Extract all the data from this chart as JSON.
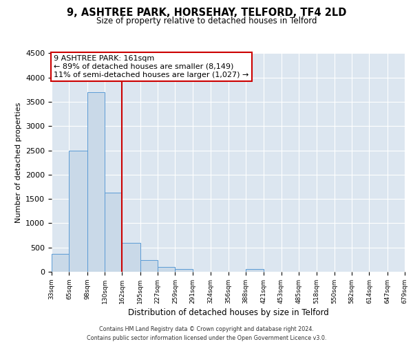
{
  "title": "9, ASHTREE PARK, HORSEHAY, TELFORD, TF4 2LD",
  "subtitle": "Size of property relative to detached houses in Telford",
  "xlabel": "Distribution of detached houses by size in Telford",
  "ylabel": "Number of detached properties",
  "bar_edges": [
    33,
    65,
    98,
    130,
    162,
    195,
    227,
    259,
    291,
    324,
    356,
    388,
    421,
    453,
    485,
    518,
    550,
    582,
    614,
    647,
    679
  ],
  "bar_heights": [
    375,
    2500,
    3700,
    1625,
    600,
    240,
    100,
    60,
    0,
    0,
    0,
    50,
    0,
    0,
    0,
    0,
    0,
    0,
    0,
    0
  ],
  "tick_labels": [
    "33sqm",
    "65sqm",
    "98sqm",
    "130sqm",
    "162sqm",
    "195sqm",
    "227sqm",
    "259sqm",
    "291sqm",
    "324sqm",
    "356sqm",
    "388sqm",
    "421sqm",
    "453sqm",
    "485sqm",
    "518sqm",
    "550sqm",
    "582sqm",
    "614sqm",
    "647sqm",
    "679sqm"
  ],
  "bar_color": "#c9d9e8",
  "bar_edge_color": "#5b9bd5",
  "vline_x": 162,
  "vline_color": "#cc0000",
  "annotation_line1": "9 ASHTREE PARK: 161sqm",
  "annotation_line2": "← 89% of detached houses are smaller (8,149)",
  "annotation_line3": "11% of semi-detached houses are larger (1,027) →",
  "annotation_box_color": "white",
  "annotation_box_edge": "#cc0000",
  "ylim": [
    0,
    4500
  ],
  "yticks": [
    0,
    500,
    1000,
    1500,
    2000,
    2500,
    3000,
    3500,
    4000,
    4500
  ],
  "footer_line1": "Contains HM Land Registry data © Crown copyright and database right 2024.",
  "footer_line2": "Contains public sector information licensed under the Open Government Licence v3.0.",
  "plot_bg_color": "#dce6f0"
}
